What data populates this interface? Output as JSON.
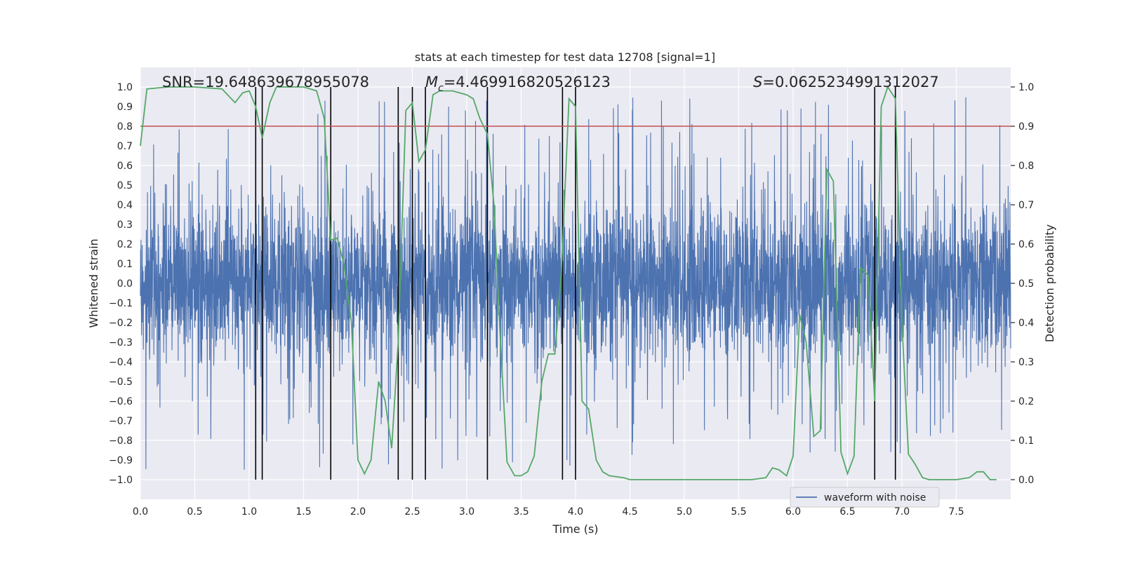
{
  "chart_data": {
    "type": "line",
    "title": "stats at each timestep for test data 12708 [signal=1]",
    "xlabel": "Time (s)",
    "ylabel": "Whitened strain",
    "y2label": "Detection probability",
    "xlim": [
      0,
      8
    ],
    "ylim": [
      -1.1,
      1.1
    ],
    "y2lim": [
      -0.05,
      1.05
    ],
    "x_ticks": [
      0.0,
      0.5,
      1.0,
      1.5,
      2.0,
      2.5,
      3.0,
      3.5,
      4.0,
      4.5,
      5.0,
      5.5,
      6.0,
      6.5,
      7.0,
      7.5
    ],
    "x_tick_labels": [
      "0.0",
      "0.5",
      "1.0",
      "1.5",
      "2.0",
      "2.5",
      "3.0",
      "3.5",
      "4.0",
      "4.5",
      "5.0",
      "5.5",
      "6.0",
      "6.5",
      "7.0",
      "7.5"
    ],
    "y_ticks": [
      -1.0,
      -0.9,
      -0.8,
      -0.7,
      -0.6,
      -0.5,
      -0.4,
      -0.3,
      -0.2,
      -0.1,
      0.0,
      0.1,
      0.2,
      0.3,
      0.4,
      0.5,
      0.6,
      0.7,
      0.8,
      0.9,
      1.0
    ],
    "y_tick_labels": [
      "−1.0",
      "−0.9",
      "−0.8",
      "−0.7",
      "−0.6",
      "−0.5",
      "−0.4",
      "−0.3",
      "−0.2",
      "−0.1",
      "0.0",
      "0.1",
      "0.2",
      "0.3",
      "0.4",
      "0.5",
      "0.6",
      "0.7",
      "0.8",
      "0.9",
      "1.0"
    ],
    "y2_ticks": [
      0.0,
      0.1,
      0.2,
      0.3,
      0.4,
      0.5,
      0.6,
      0.7,
      0.8,
      0.9,
      1.0
    ],
    "y2_tick_labels": [
      "0.0",
      "0.1",
      "0.2",
      "0.3",
      "0.4",
      "0.5",
      "0.6",
      "0.7",
      "0.8",
      "0.9",
      "1.0"
    ],
    "grid": true,
    "legend_placement": "lower-right",
    "annotations": {
      "snr": "SNR=19.648639678955078",
      "mc_symbol": "M",
      "mc_sub": "c",
      "mc_value": "=4.469916820526123",
      "s_symbol": "S",
      "s_value": "=0.0625234991312027"
    },
    "threshold": {
      "axis": "right",
      "y": 0.9,
      "color": "#c44e52"
    },
    "vlines": [
      1.06,
      1.12,
      1.75,
      2.37,
      2.5,
      2.62,
      3.19,
      3.88,
      4.0,
      6.75,
      6.94
    ],
    "series": [
      {
        "name": "waveform with noise",
        "axis": "left",
        "color": "#4c72b0",
        "style": "dense-noise",
        "envelope_typical": 0.4,
        "peak_max": 0.99,
        "peak_min": -1.0
      },
      {
        "axis": "right",
        "color": "#55a868",
        "x": [
          0.0,
          0.06,
          0.25,
          0.5,
          0.75,
          0.87,
          0.94,
          1.0,
          1.06,
          1.12,
          1.19,
          1.25,
          1.31,
          1.5,
          1.62,
          1.69,
          1.75,
          1.81,
          1.87,
          1.94,
          2.0,
          2.06,
          2.12,
          2.19,
          2.25,
          2.31,
          2.37,
          2.44,
          2.5,
          2.56,
          2.62,
          2.69,
          2.75,
          2.87,
          3.0,
          3.06,
          3.12,
          3.19,
          3.25,
          3.31,
          3.37,
          3.44,
          3.5,
          3.56,
          3.62,
          3.69,
          3.75,
          3.81,
          3.87,
          3.94,
          4.0,
          4.06,
          4.12,
          4.19,
          4.25,
          4.31,
          4.44,
          4.5,
          5.0,
          5.25,
          5.62,
          5.75,
          5.81,
          5.87,
          5.94,
          6.0,
          6.06,
          6.12,
          6.19,
          6.25,
          6.31,
          6.37,
          6.44,
          6.5,
          6.56,
          6.62,
          6.69,
          6.75,
          6.81,
          6.87,
          6.94,
          7.0,
          7.06,
          7.12,
          7.19,
          7.25,
          7.5,
          7.62,
          7.69,
          7.75,
          7.81,
          7.87
        ],
        "y": [
          0.85,
          0.995,
          1.0,
          1.0,
          0.995,
          0.96,
          0.985,
          0.99,
          0.95,
          0.87,
          0.96,
          1.0,
          1.0,
          1.0,
          0.99,
          0.92,
          0.61,
          0.615,
          0.55,
          0.4,
          0.05,
          0.015,
          0.05,
          0.25,
          0.2,
          0.08,
          0.35,
          0.94,
          0.96,
          0.81,
          0.84,
          0.98,
          0.99,
          0.99,
          0.98,
          0.97,
          0.92,
          0.88,
          0.7,
          0.35,
          0.045,
          0.01,
          0.01,
          0.02,
          0.06,
          0.25,
          0.32,
          0.32,
          0.53,
          0.97,
          0.95,
          0.2,
          0.18,
          0.05,
          0.02,
          0.01,
          0.005,
          0.0,
          0.0,
          0.0,
          0.0,
          0.005,
          0.03,
          0.025,
          0.01,
          0.06,
          0.42,
          0.35,
          0.11,
          0.125,
          0.79,
          0.76,
          0.07,
          0.015,
          0.06,
          0.54,
          0.52,
          0.2,
          0.95,
          1.0,
          0.97,
          0.4,
          0.065,
          0.04,
          0.005,
          0.0,
          0.0,
          0.005,
          0.02,
          0.02,
          0.0,
          0.0
        ]
      }
    ]
  }
}
